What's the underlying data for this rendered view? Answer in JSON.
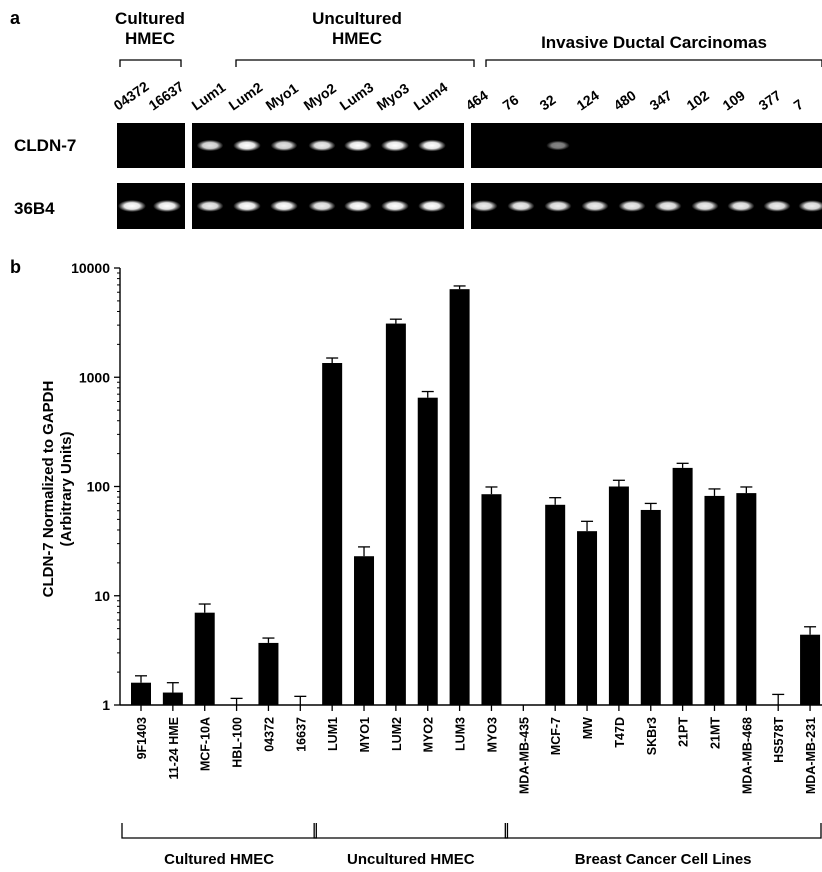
{
  "panel_a": {
    "panel_letter": "a",
    "groups": [
      {
        "label_lines": [
          "Cultured",
          "HMEC"
        ]
      },
      {
        "label_lines": [
          "Uncultured",
          "HMEC"
        ]
      },
      {
        "label_lines": [
          "Invasive Ductal Carcinomas"
        ]
      }
    ],
    "lanes": [
      {
        "label": "04372",
        "group": 0,
        "cldn7": 0,
        "b36": 1
      },
      {
        "label": "16637",
        "group": 0,
        "cldn7": 0,
        "b36": 1
      },
      {
        "label": "Lum1",
        "group": 1,
        "cldn7": 0.8,
        "b36": 0.85
      },
      {
        "label": "Lum2",
        "group": 1,
        "cldn7": 0.95,
        "b36": 0.95
      },
      {
        "label": "Myo1",
        "group": 1,
        "cldn7": 0.8,
        "b36": 0.95
      },
      {
        "label": "Myo2",
        "group": 1,
        "cldn7": 0.85,
        "b36": 0.85
      },
      {
        "label": "Lum3",
        "group": 1,
        "cldn7": 0.95,
        "b36": 0.95
      },
      {
        "label": "Myo3",
        "group": 1,
        "cldn7": 1,
        "b36": 0.95
      },
      {
        "label": "Lum4",
        "group": 1,
        "cldn7": 0.95,
        "b36": 0.95
      },
      {
        "label": "464",
        "group": 2,
        "cldn7": 0,
        "b36": 0.85
      },
      {
        "label": "76",
        "group": 2,
        "cldn7": 0,
        "b36": 0.85
      },
      {
        "label": "32",
        "group": 2,
        "cldn7": 0.35,
        "b36": 0.85
      },
      {
        "label": "124",
        "group": 2,
        "cldn7": 0,
        "b36": 0.85
      },
      {
        "label": "480",
        "group": 2,
        "cldn7": 0,
        "b36": 0.85
      },
      {
        "label": "347",
        "group": 2,
        "cldn7": 0,
        "b36": 0.85
      },
      {
        "label": "102",
        "group": 2,
        "cldn7": 0,
        "b36": 0.85
      },
      {
        "label": "109",
        "group": 2,
        "cldn7": 0,
        "b36": 0.85
      },
      {
        "label": "377",
        "group": 2,
        "cldn7": 0,
        "b36": 0.85
      },
      {
        "label": "7",
        "group": 2,
        "cldn7": 0,
        "b36": 0.85
      }
    ],
    "rows": [
      {
        "label": "CLDN-7",
        "key": "cldn7"
      },
      {
        "label": "36B4",
        "key": "b36"
      }
    ]
  },
  "chart_data": {
    "panel_letter": "b",
    "type": "bar",
    "ylabel_lines": [
      "CLDN-7 Normalized to GAPDH",
      "(Arbitrary Units)"
    ],
    "xlabel": "",
    "yscale": "log",
    "ylim": [
      1,
      10000
    ],
    "yticks": [
      "1",
      "10",
      "100",
      "1000",
      "10000"
    ],
    "grid": false,
    "categories": [
      "9F1403",
      "11-24 HME",
      "MCF-10A",
      "HBL-100",
      "04372",
      "16637",
      "LUM1",
      "MYO1",
      "LUM2",
      "MYO2",
      "LUM3",
      "MYO3",
      "MDA-MB-435",
      "MCF-7",
      "MW",
      "T47D",
      "SKBr3",
      "21PT",
      "21MT",
      "MDA-MB-468",
      "HS578T",
      "MDA-MB-231"
    ],
    "values": [
      1.6,
      1.3,
      7,
      1,
      3.7,
      1,
      1350,
      23,
      3100,
      650,
      6400,
      85,
      1,
      68,
      39,
      100,
      61,
      148,
      82,
      87,
      1,
      4.4
    ],
    "errors": [
      0.25,
      0.3,
      1.4,
      0.15,
      0.4,
      0.2,
      150,
      5,
      300,
      90,
      450,
      14,
      0,
      11,
      9,
      14,
      9,
      15,
      13,
      12,
      0.25,
      0.8
    ],
    "groups": [
      {
        "label": "Cultured HMEC",
        "start": 0,
        "end": 5
      },
      {
        "label": "Uncultured HMEC",
        "start": 6,
        "end": 11
      },
      {
        "label": "Breast Cancer Cell Lines",
        "start": 12,
        "end": 21
      }
    ]
  }
}
